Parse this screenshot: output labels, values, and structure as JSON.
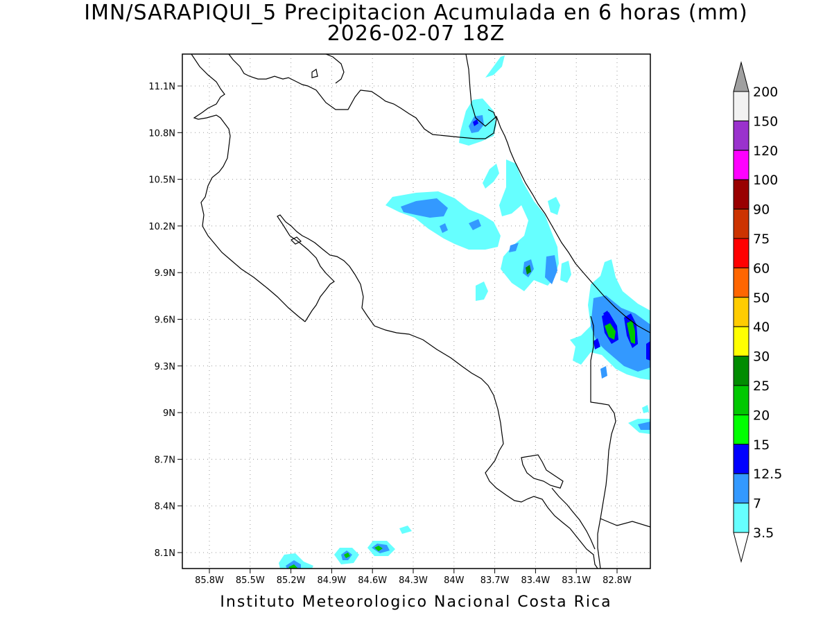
{
  "title": {
    "line1": "IMN/SARAPIQUI_5 Precipitacion Acumulada en 6 horas (mm)",
    "line2": "2026-02-07 18Z"
  },
  "credit": "Instituto Meteorologico Nacional Costa Rica",
  "map": {
    "region": "Costa Rica",
    "field": "6-hour accumulated precipitation (mm)",
    "x_ticks": [
      "85.8W",
      "85.5W",
      "85.2W",
      "84.9W",
      "84.6W",
      "84.3W",
      "84W",
      "83.7W",
      "83.4W",
      "83.1W",
      "82.8W"
    ],
    "y_ticks": [
      "11.1N",
      "10.8N",
      "10.5N",
      "10.2N",
      "9.9N",
      "9.6N",
      "9.3N",
      "9N",
      "8.7N",
      "8.4N",
      "8.1N"
    ]
  },
  "colorbar": {
    "labels": [
      "200",
      "150",
      "120",
      "100",
      "90",
      "75",
      "60",
      "50",
      "40",
      "30",
      "25",
      "20",
      "15",
      "12.5",
      "7",
      "3.5"
    ],
    "colors": [
      "#f2f2f2",
      "#9a32cd",
      "#ff00ff",
      "#990000",
      "#cc3300",
      "#ff0000",
      "#ff6600",
      "#ffcc00",
      "#ffff00",
      "#008c00",
      "#00c800",
      "#00ff00",
      "#0000ff",
      "#3399ff",
      "#66ffff"
    ],
    "over_color": "#a0a0a0",
    "under_color": "#ffffff"
  }
}
